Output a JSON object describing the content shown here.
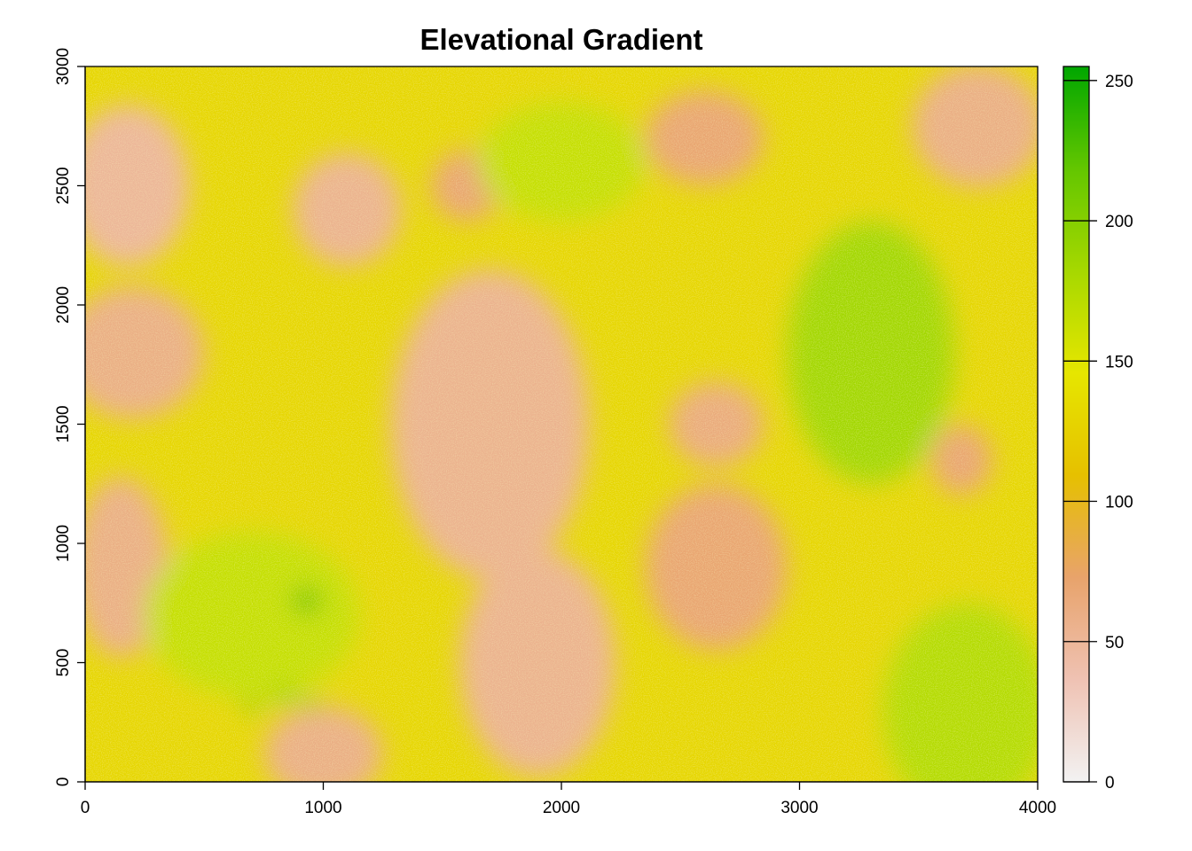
{
  "chart_data": {
    "type": "heatmap",
    "title": "Elevational Gradient",
    "xlabel": "",
    "ylabel": "",
    "xlim": [
      0,
      4000
    ],
    "ylim": [
      0,
      3000
    ],
    "x_ticks": [
      0,
      1000,
      2000,
      3000,
      4000
    ],
    "y_ticks": [
      0,
      500,
      1000,
      1500,
      2000,
      2500,
      3000
    ],
    "x_tick_labels": [
      "0",
      "1000",
      "2000",
      "3000",
      "4000"
    ],
    "y_tick_labels": [
      "0",
      "500",
      "1000",
      "1500",
      "2000",
      "2500",
      "3000"
    ],
    "colorbar": {
      "range": [
        0,
        255
      ],
      "ticks": [
        0,
        50,
        100,
        150,
        200,
        250
      ],
      "tick_labels": [
        "0",
        "50",
        "100",
        "150",
        "200",
        "250"
      ],
      "colors": [
        "#f2f2f2",
        "#efc2b3",
        "#e8a36b",
        "#e6c000",
        "#e6e600",
        "#a6d800",
        "#63c600",
        "#00a600"
      ],
      "placement": "right"
    },
    "regions": [
      {
        "name": "low-ne",
        "cx": 1100,
        "cy": 2400,
        "rx": 230,
        "ry": 240,
        "value": 55
      },
      {
        "name": "low-nw",
        "cx": 180,
        "cy": 2500,
        "rx": 260,
        "ry": 340,
        "value": 50
      },
      {
        "name": "low-w",
        "cx": 200,
        "cy": 1800,
        "rx": 300,
        "ry": 280,
        "value": 60
      },
      {
        "name": "low-center",
        "cx": 1700,
        "cy": 1500,
        "rx": 420,
        "ry": 650,
        "value": 55
      },
      {
        "name": "low-south",
        "cx": 1900,
        "cy": 500,
        "rx": 330,
        "ry": 480,
        "value": 55
      },
      {
        "name": "low-sw",
        "cx": 150,
        "cy": 900,
        "rx": 200,
        "ry": 380,
        "value": 60
      },
      {
        "name": "low-s",
        "cx": 1000,
        "cy": 120,
        "rx": 250,
        "ry": 200,
        "value": 60
      },
      {
        "name": "low-center-right",
        "cx": 2650,
        "cy": 1500,
        "rx": 200,
        "ry": 180,
        "value": 65
      },
      {
        "name": "low-right-mid",
        "cx": 2650,
        "cy": 900,
        "rx": 300,
        "ry": 350,
        "value": 70
      },
      {
        "name": "low-top-right",
        "cx": 3750,
        "cy": 2750,
        "rx": 280,
        "ry": 260,
        "value": 60
      },
      {
        "name": "low-top-mid",
        "cx": 2600,
        "cy": 2700,
        "rx": 250,
        "ry": 200,
        "value": 70
      },
      {
        "name": "low-east",
        "cx": 3680,
        "cy": 1350,
        "rx": 130,
        "ry": 150,
        "value": 70
      },
      {
        "name": "low-top-center",
        "cx": 1600,
        "cy": 2500,
        "rx": 150,
        "ry": 150,
        "value": 70
      },
      {
        "name": "high-east",
        "cx": 3300,
        "cy": 1800,
        "rx": 350,
        "ry": 550,
        "value": 185
      },
      {
        "name": "high-se",
        "cx": 3700,
        "cy": 300,
        "rx": 350,
        "ry": 450,
        "value": 175
      },
      {
        "name": "high-center-top",
        "cx": 2000,
        "cy": 2600,
        "rx": 350,
        "ry": 250,
        "value": 165
      },
      {
        "name": "high-sw",
        "cx": 700,
        "cy": 700,
        "rx": 450,
        "ry": 350,
        "value": 165
      },
      {
        "name": "high-diamond",
        "cx": 930,
        "cy": 760,
        "rx": 55,
        "ry": 50,
        "value": 230
      },
      {
        "name": "high-patch-1",
        "cx": 700,
        "cy": 320,
        "rx": 35,
        "ry": 30,
        "value": 210
      },
      {
        "name": "high-patch-2",
        "cx": 840,
        "cy": 360,
        "rx": 40,
        "ry": 35,
        "value": 210
      },
      {
        "name": "high-patch-3",
        "cx": 950,
        "cy": 330,
        "rx": 30,
        "ry": 30,
        "value": 210
      }
    ],
    "background_value": 130
  }
}
